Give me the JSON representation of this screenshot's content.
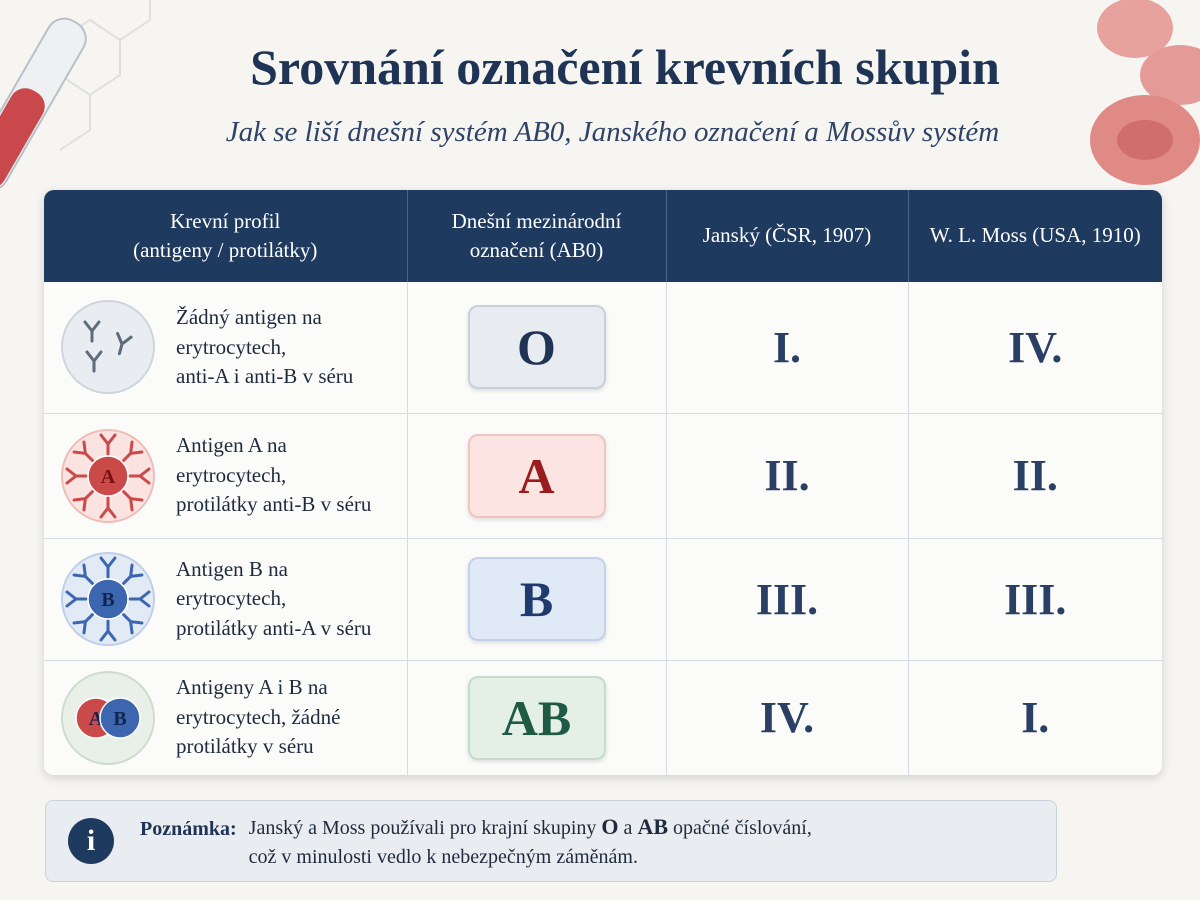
{
  "header": {
    "title": "Srovnání označení krevních skupin",
    "subtitle": "Jak se liší dnešní systém AB0, Janského označení a Mossův systém"
  },
  "table": {
    "columns": [
      "Krevní profil\n(antigeny / protilátky)",
      "Dnešní mezinárodní\noznačení (AB0)",
      "Janský (ČSR, 1907)",
      "W. L. Moss (USA, 1910)"
    ],
    "rows": [
      {
        "profile": "Žádný antigen na\nerytrocytech,\nanti-A i anti-B v séru",
        "abo": "O",
        "jansky": "I.",
        "moss": "IV."
      },
      {
        "icon": [
          "A"
        ],
        "profile": "Antigen A na\nerytrocytech,\nprotilátky anti-B v séru",
        "abo": "A",
        "jansky": "II.",
        "moss": "II."
      },
      {
        "icon": [
          "B"
        ],
        "profile": "Antigen B na\nerytrocytech,\nprotilátky anti-A v séru",
        "abo": "B",
        "jansky": "III.",
        "moss": "III."
      },
      {
        "icon": [
          "A",
          "B"
        ],
        "profile": "Antigeny A i B na\nerytrocytech, žádné\nprotilátky v séru",
        "abo": "AB",
        "jansky": "IV.",
        "moss": "I."
      }
    ]
  },
  "note": {
    "label": "Poznámka:",
    "parts": [
      "Janský a Moss používali pro krajní skupiny ",
      "O",
      " a ",
      "AB",
      " opačné číslování,\ncož v minulosti vedlo k nebezpečným záměnám."
    ]
  }
}
